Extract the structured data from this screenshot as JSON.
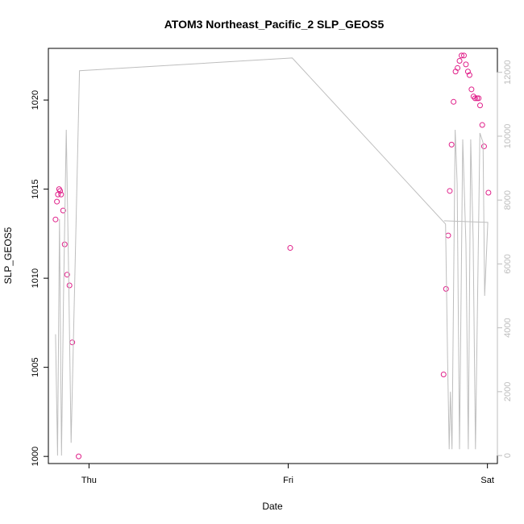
{
  "chart_data": {
    "type": "scatter",
    "title": "ATOM3 Northeast_Pacific_2 SLP_GEOS5",
    "xlabel": "Date",
    "ylabel": "SLP_GEOS5",
    "x_ticks": [
      {
        "value": 0.5,
        "label": "Thu"
      },
      {
        "value": 1.5,
        "label": "Fri"
      },
      {
        "value": 2.5,
        "label": "Sat"
      }
    ],
    "xlim": [
      0.296,
      2.55
    ],
    "ylim": [
      999.6,
      1022.9
    ],
    "yticks": [
      1000,
      1005,
      1010,
      1015,
      1020
    ],
    "y2lim": [
      -250,
      12750
    ],
    "y2ticks": [
      0,
      2000,
      4000,
      6000,
      8000,
      10000,
      12000
    ],
    "series": [
      {
        "marker": "circle",
        "color": "#e0218a",
        "points": [
          [
            0.332,
            1013.3
          ],
          [
            0.339,
            1014.3
          ],
          [
            0.344,
            1014.7
          ],
          [
            0.35,
            1015.0
          ],
          [
            0.355,
            1014.9
          ],
          [
            0.36,
            1014.7
          ],
          [
            0.37,
            1013.8
          ],
          [
            0.378,
            1011.9
          ],
          [
            0.39,
            1010.2
          ],
          [
            0.402,
            1009.6
          ],
          [
            0.416,
            1006.4
          ],
          [
            0.448,
            1000.0
          ],
          [
            1.51,
            1011.7
          ],
          [
            2.28,
            1004.6
          ],
          [
            2.292,
            1009.4
          ],
          [
            2.303,
            1012.4
          ],
          [
            2.311,
            1014.9
          ],
          [
            2.32,
            1017.5
          ],
          [
            2.33,
            1019.9
          ],
          [
            2.34,
            1021.6
          ],
          [
            2.35,
            1021.8
          ],
          [
            2.36,
            1022.2
          ],
          [
            2.37,
            1022.5
          ],
          [
            2.382,
            1022.5
          ],
          [
            2.392,
            1022.0
          ],
          [
            2.402,
            1021.6
          ],
          [
            2.41,
            1021.4
          ],
          [
            2.42,
            1020.6
          ],
          [
            2.43,
            1020.2
          ],
          [
            2.438,
            1020.1
          ],
          [
            2.448,
            1020.1
          ],
          [
            2.456,
            1020.1
          ],
          [
            2.463,
            1019.7
          ],
          [
            2.474,
            1018.6
          ],
          [
            2.483,
            1017.4
          ],
          [
            2.505,
            1014.8
          ]
        ]
      },
      {
        "type": "line",
        "color": "#bebebe",
        "axis": "right",
        "points": [
          [
            0.332,
            3800
          ],
          [
            0.342,
            0
          ],
          [
            0.352,
            7400
          ],
          [
            0.362,
            0
          ],
          [
            0.372,
            5000
          ],
          [
            0.386,
            10200
          ],
          [
            0.398,
            5600
          ],
          [
            0.41,
            400
          ],
          [
            0.452,
            12050
          ],
          [
            1.52,
            12450
          ],
          [
            2.29,
            7250
          ],
          [
            2.3,
            3050
          ],
          [
            2.308,
            200
          ],
          [
            2.314,
            2000
          ],
          [
            2.322,
            200
          ],
          [
            2.338,
            10200
          ],
          [
            2.348,
            8500
          ],
          [
            2.36,
            200
          ],
          [
            2.376,
            9900
          ],
          [
            2.392,
            6600
          ],
          [
            2.404,
            200
          ],
          [
            2.416,
            9900
          ],
          [
            2.428,
            6800
          ],
          [
            2.44,
            200
          ],
          [
            2.462,
            10100
          ],
          [
            2.478,
            9800
          ],
          [
            2.486,
            5000
          ],
          [
            2.502,
            7300
          ],
          [
            2.282,
            7350
          ]
        ]
      }
    ],
    "grid": false,
    "legend": "none"
  }
}
